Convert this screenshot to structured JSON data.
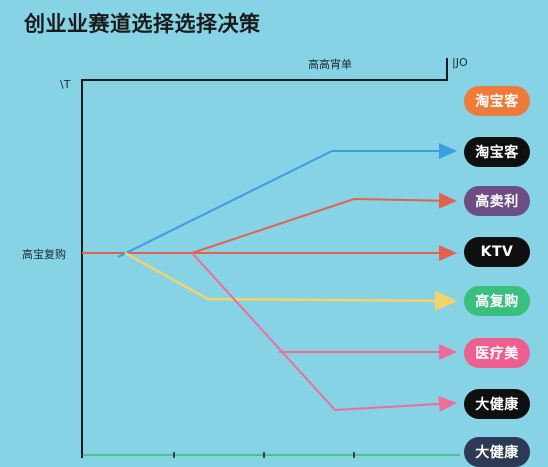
{
  "title": "创业业赛道选择选择决策",
  "top_label": "高高宵单",
  "unit_label": "|JO",
  "y_label": "\\T",
  "left_label": "高宝复购",
  "options": [
    {
      "label": "淘宝客",
      "color": "#ef7b3a"
    },
    {
      "label": "淘宝客",
      "color": "#0f0f0f"
    },
    {
      "label": "高卖利",
      "color": "#6d4e82"
    },
    {
      "label": "KTV",
      "color": "#0f0f0f"
    },
    {
      "label": "高复购",
      "color": "#3bbf7e"
    },
    {
      "label": "医疗美",
      "color": "#ee5f90"
    },
    {
      "label": "大健康",
      "color": "#0f0f0f"
    },
    {
      "label": "大健康",
      "color": "#2e3a55"
    }
  ],
  "line_colors": {
    "blue": "#3a9ee0",
    "red": "#e5614f",
    "yellow": "#f3d36a",
    "pink": "#ef6c97",
    "green": "#4cc38a",
    "axis": "#1a1a1a"
  }
}
